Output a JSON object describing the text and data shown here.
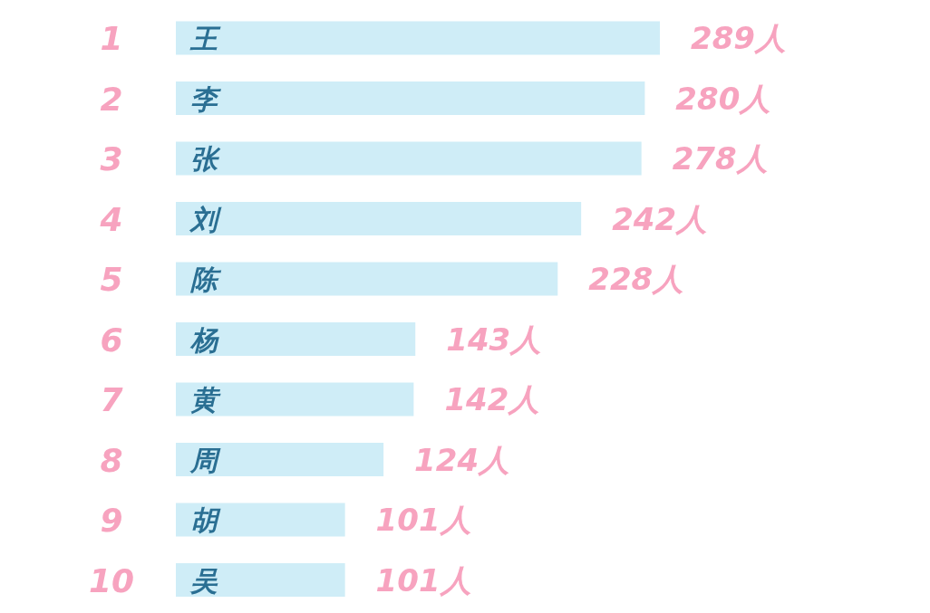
{
  "chart_data": {
    "type": "bar",
    "orientation": "horizontal",
    "categories": [
      "王",
      "李",
      "张",
      "刘",
      "陈",
      "杨",
      "黄",
      "周",
      "胡",
      "吴"
    ],
    "values": [
      289,
      280,
      278,
      242,
      228,
      143,
      142,
      124,
      101,
      101
    ],
    "value_labels": [
      "289人",
      "280人",
      "278人",
      "242人",
      "228人",
      "143人",
      "142人",
      "124人",
      "101人",
      "101人"
    ],
    "color": "#cfedf7",
    "annotations": [
      "1",
      "2",
      "3",
      "4",
      "5",
      "6",
      "7",
      "8",
      "9",
      "10"
    ]
  }
}
